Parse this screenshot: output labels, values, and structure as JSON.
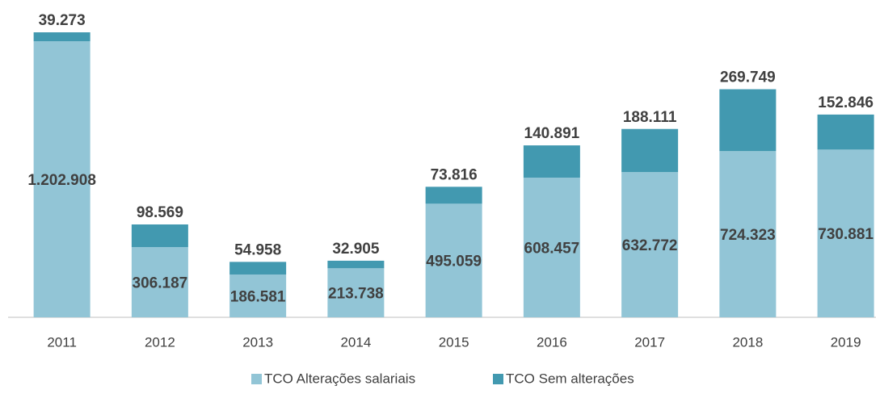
{
  "chart_data": {
    "type": "stacked_bar",
    "categories": [
      "2011",
      "2012",
      "2013",
      "2014",
      "2015",
      "2016",
      "2017",
      "2018",
      "2019"
    ],
    "series": [
      {
        "name": "TCO Alterações salariais",
        "color": "#92c5d6",
        "values": [
          1202908,
          306187,
          186581,
          213738,
          495059,
          608457,
          632772,
          724323,
          730881
        ],
        "value_labels": [
          "1.202.908",
          "306.187",
          "186.581",
          "213.738",
          "495.059",
          "608.457",
          "632.772",
          "724.323",
          "730.881"
        ]
      },
      {
        "name": "TCO Sem alterações",
        "color": "#4299b0",
        "values": [
          39273,
          98569,
          54958,
          32905,
          73816,
          140891,
          188111,
          269749,
          152846
        ],
        "value_labels": [
          "39.273",
          "98.569",
          "54.958",
          "32.905",
          "73.816",
          "140.891",
          "188.111",
          "269.749",
          "152.846"
        ]
      }
    ],
    "ylim": [
      0,
      1250000
    ],
    "legend": "bottom"
  }
}
